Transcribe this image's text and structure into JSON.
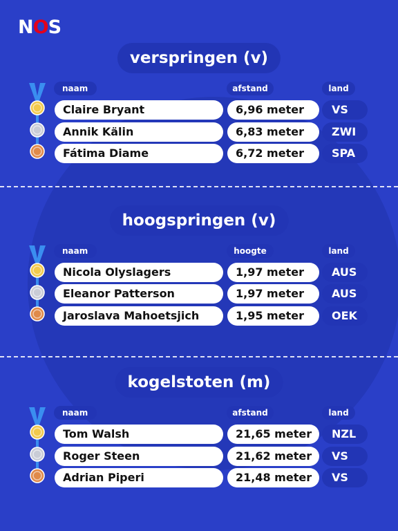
{
  "logo": {
    "text_n": "N",
    "text_o": "O",
    "text_s": "S"
  },
  "sections": [
    {
      "title": "verspringen (v)",
      "headers": {
        "naam": "naam",
        "value": "afstand",
        "land": "land"
      },
      "rows": [
        {
          "medal": "gold",
          "name": "Claire Bryant",
          "value": "6,96 meter",
          "country": "VS"
        },
        {
          "medal": "silver",
          "name": "Annik Kälin",
          "value": "6,83 meter",
          "country": "ZWI"
        },
        {
          "medal": "bronze",
          "name": "Fátima Diame",
          "value": "6,72 meter",
          "country": "SPA"
        }
      ]
    },
    {
      "title": "hoogspringen (v)",
      "headers": {
        "naam": "naam",
        "value": "hoogte",
        "land": "land"
      },
      "rows": [
        {
          "medal": "gold",
          "name": "Nicola Olyslagers",
          "value": "1,97 meter",
          "country": "AUS"
        },
        {
          "medal": "silver",
          "name": "Eleanor Patterson",
          "value": "1,97 meter",
          "country": "AUS"
        },
        {
          "medal": "bronze",
          "name": "Jaroslava Mahoetsjich",
          "value": "1,95 meter",
          "country": "OEK"
        }
      ]
    },
    {
      "title": "kogelstoten (m)",
      "headers": {
        "naam": "naam",
        "value": "afstand",
        "land": "land"
      },
      "rows": [
        {
          "medal": "gold",
          "name": "Tom Walsh",
          "value": "21,65 meter",
          "country": "NZL"
        },
        {
          "medal": "silver",
          "name": "Roger Steen",
          "value": "21,62 meter",
          "country": "VS"
        },
        {
          "medal": "bronze",
          "name": "Adrian Piperi",
          "value": "21,48 meter",
          "country": "VS"
        }
      ]
    }
  ],
  "colors": {
    "background": "#2a3fc8",
    "panel": "#2235b5",
    "gold": "#f2c94c",
    "silver": "#c9ccd6",
    "bronze": "#e08a4a",
    "ribbon": "#3a8ef0",
    "logo_o": "#e3001b"
  }
}
